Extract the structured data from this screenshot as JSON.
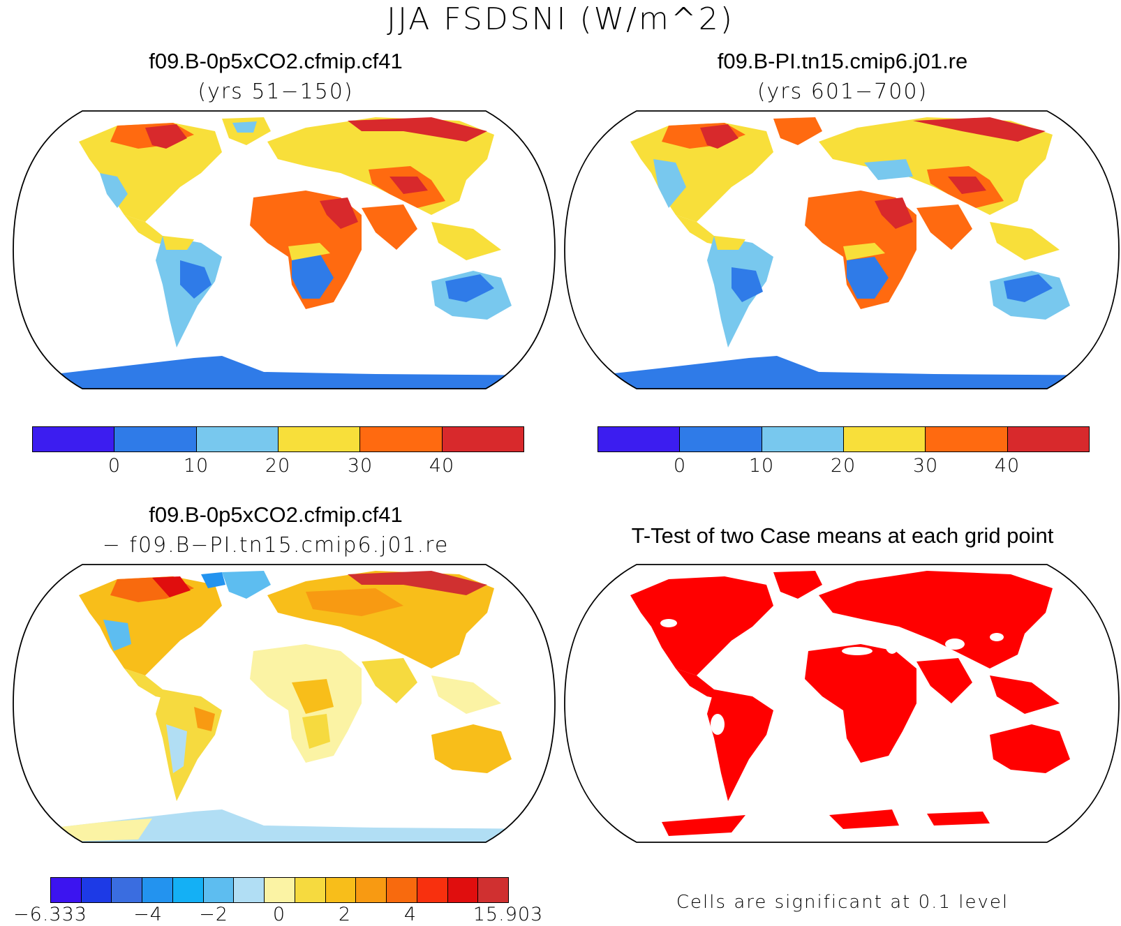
{
  "figure": {
    "title": "JJA FSDSNI (W/m^2)"
  },
  "panels": {
    "top_left": {
      "title": "f09.B-0p5xCO2.cfmip.cf41",
      "subtitle": "(yrs 51−150)"
    },
    "top_right": {
      "title": "f09.B-PI.tn15.cmip6.j01.re",
      "subtitle": "(yrs 601−700)"
    },
    "bottom_left": {
      "title": "f09.B-0p5xCO2.cfmip.cf41",
      "subtitle": "− f09.B−PI.tn15.cmip6.j01.re"
    },
    "bottom_right": {
      "title": "T-Test of two Case means at each grid point",
      "note": "Cells are significant at 0.1 level"
    }
  },
  "colorbars": {
    "absolute": {
      "colors": [
        "#3c1df0",
        "#2f7be8",
        "#78c8ee",
        "#f8df3a",
        "#ff6a10",
        "#d8292c"
      ],
      "ticks": [
        "0",
        "10",
        "20",
        "30",
        "40"
      ]
    },
    "difference": {
      "colors": [
        "#3c14f0",
        "#1d3ae6",
        "#3a6de0",
        "#2393ef",
        "#14b0f5",
        "#5dbdf0",
        "#b1def4",
        "#fbf3a4",
        "#f6da3f",
        "#f8be1a",
        "#f89a12",
        "#f86a0e",
        "#f8300e",
        "#e00e0e",
        "#d03030"
      ],
      "tick_labels": [
        "−6.333",
        "−4",
        "−2",
        "0",
        "2",
        "4",
        "15.903"
      ]
    }
  },
  "icons": {
    "map_projection": "robinson-globe-outline",
    "significance_color": "#ff0000"
  }
}
